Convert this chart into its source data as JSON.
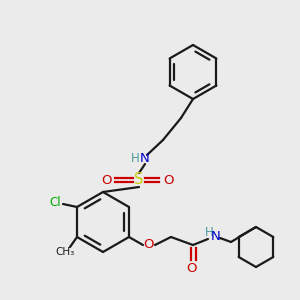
{
  "bg_color": "#ebebeb",
  "bond_color": "#1a1a1a",
  "colors": {
    "N": "#0000cc",
    "H": "#4a9a9a",
    "O": "#cc0000",
    "S": "#cccc00",
    "Cl": "#00aa00",
    "C": "#1a1a1a"
  },
  "figsize": [
    3.0,
    3.0
  ],
  "dpi": 100,
  "lw": 1.6
}
